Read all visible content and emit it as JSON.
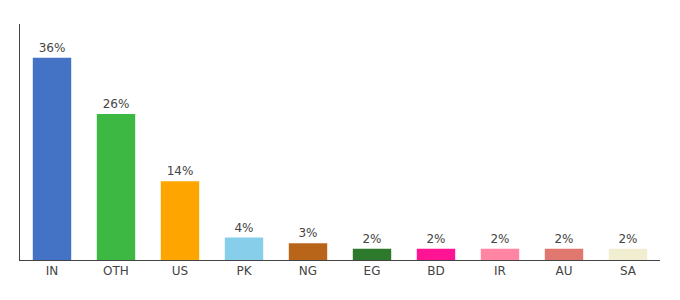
{
  "chart_data": {
    "type": "bar",
    "categories": [
      "IN",
      "OTH",
      "US",
      "PK",
      "NG",
      "EG",
      "BD",
      "IR",
      "AU",
      "SA"
    ],
    "values": [
      36,
      26,
      14,
      4,
      3,
      2,
      2,
      2,
      2,
      2
    ],
    "value_labels": [
      "36%",
      "26%",
      "14%",
      "4%",
      "3%",
      "2%",
      "2%",
      "2%",
      "2%",
      "2%"
    ],
    "colors": [
      "#4472C4",
      "#3CB843",
      "#FFA500",
      "#87CEEB",
      "#B8651A",
      "#2D7A2D",
      "#FF1493",
      "#FF85A2",
      "#E07870",
      "#F0EDD0"
    ],
    "ylim": [
      0,
      42
    ],
    "grid": false,
    "data_labels": true,
    "tick_labels": "x"
  }
}
